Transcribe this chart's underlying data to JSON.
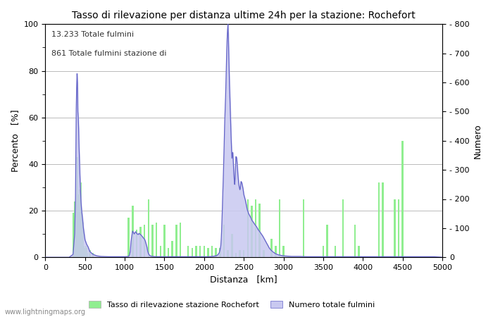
{
  "title": "Tasso di rilevazione per distanza ultime 24h per la stazione: Rochefort",
  "xlabel": "Distanza   [km]",
  "ylabel_left": "Percento   [%]",
  "ylabel_right": "Numero",
  "annotation_line1": "13.233 Totale fulmini",
  "annotation_line2": "861 Totale fulmini stazione di",
  "xlim": [
    0,
    5000
  ],
  "ylim_left": [
    0,
    100
  ],
  "ylim_right": [
    0,
    800
  ],
  "xticks": [
    0,
    500,
    1000,
    1500,
    2000,
    2500,
    3000,
    3500,
    4000,
    4500,
    5000
  ],
  "yticks_left": [
    0,
    20,
    40,
    60,
    80,
    100
  ],
  "yticks_right": [
    0,
    100,
    200,
    300,
    400,
    500,
    600,
    700,
    800
  ],
  "legend_label_green": "Tasso di rilevazione stazione Rochefort",
  "legend_label_blue": "Numero totale fulmini",
  "watermark": "www.lightningmaps.org",
  "bar_color": "#90ee90",
  "fill_color": "#c8c8f0",
  "line_color": "#6464c8",
  "bg_color": "#ffffff",
  "grid_color": "#bbbbbb",
  "figsize": [
    7.0,
    4.5
  ],
  "dpi": 100,
  "bar_data": [
    [
      50,
      0
    ],
    [
      300,
      0
    ],
    [
      350,
      19
    ],
    [
      370,
      24
    ],
    [
      390,
      18
    ],
    [
      400,
      43
    ],
    [
      410,
      15
    ],
    [
      420,
      27
    ],
    [
      430,
      29
    ],
    [
      440,
      28
    ],
    [
      450,
      32
    ],
    [
      460,
      18
    ],
    [
      470,
      15
    ],
    [
      480,
      5
    ],
    [
      490,
      4
    ],
    [
      500,
      3
    ],
    [
      510,
      5
    ],
    [
      520,
      4
    ],
    [
      530,
      2
    ],
    [
      560,
      3
    ],
    [
      600,
      2
    ],
    [
      700,
      0
    ],
    [
      800,
      0
    ],
    [
      850,
      0
    ],
    [
      900,
      0
    ],
    [
      950,
      0
    ],
    [
      1050,
      17
    ],
    [
      1100,
      22
    ],
    [
      1150,
      12
    ],
    [
      1200,
      13
    ],
    [
      1250,
      14
    ],
    [
      1300,
      25
    ],
    [
      1350,
      14
    ],
    [
      1400,
      15
    ],
    [
      1450,
      5
    ],
    [
      1500,
      14
    ],
    [
      1550,
      4
    ],
    [
      1600,
      7
    ],
    [
      1650,
      14
    ],
    [
      1700,
      15
    ],
    [
      1750,
      0
    ],
    [
      1800,
      5
    ],
    [
      1850,
      4
    ],
    [
      1900,
      5
    ],
    [
      1950,
      5
    ],
    [
      2000,
      5
    ],
    [
      2050,
      4
    ],
    [
      2100,
      5
    ],
    [
      2150,
      4
    ],
    [
      2200,
      4
    ],
    [
      2250,
      14
    ],
    [
      2300,
      3
    ],
    [
      2350,
      10
    ],
    [
      2400,
      2
    ],
    [
      2450,
      3
    ],
    [
      2500,
      3
    ],
    [
      2550,
      25
    ],
    [
      2600,
      22
    ],
    [
      2650,
      25
    ],
    [
      2700,
      23
    ],
    [
      2750,
      3
    ],
    [
      2800,
      0
    ],
    [
      2850,
      8
    ],
    [
      2900,
      5
    ],
    [
      2950,
      25
    ],
    [
      3000,
      5
    ],
    [
      3050,
      0
    ],
    [
      3100,
      0
    ],
    [
      3150,
      0
    ],
    [
      3200,
      0
    ],
    [
      3250,
      25
    ],
    [
      3300,
      0
    ],
    [
      3350,
      0
    ],
    [
      3400,
      0
    ],
    [
      3450,
      0
    ],
    [
      3500,
      5
    ],
    [
      3550,
      14
    ],
    [
      3600,
      0
    ],
    [
      3650,
      5
    ],
    [
      3700,
      0
    ],
    [
      3750,
      25
    ],
    [
      3800,
      0
    ],
    [
      3850,
      0
    ],
    [
      3900,
      14
    ],
    [
      3950,
      5
    ],
    [
      4000,
      0
    ],
    [
      4050,
      0
    ],
    [
      4100,
      0
    ],
    [
      4150,
      0
    ],
    [
      4200,
      32
    ],
    [
      4250,
      32
    ],
    [
      4300,
      0
    ],
    [
      4350,
      0
    ],
    [
      4400,
      25
    ],
    [
      4450,
      25
    ],
    [
      4500,
      50
    ],
    [
      4550,
      0
    ],
    [
      4600,
      0
    ],
    [
      4650,
      0
    ],
    [
      4700,
      0
    ],
    [
      4750,
      0
    ],
    [
      4800,
      0
    ],
    [
      4850,
      0
    ],
    [
      4900,
      0
    ],
    [
      4950,
      0
    ]
  ],
  "line_data": [
    [
      0,
      0
    ],
    [
      100,
      0
    ],
    [
      200,
      0
    ],
    [
      300,
      0
    ],
    [
      350,
      10
    ],
    [
      370,
      80
    ],
    [
      380,
      200
    ],
    [
      390,
      510
    ],
    [
      395,
      580
    ],
    [
      400,
      630
    ],
    [
      405,
      600
    ],
    [
      410,
      500
    ],
    [
      415,
      480
    ],
    [
      420,
      440
    ],
    [
      425,
      380
    ],
    [
      430,
      340
    ],
    [
      435,
      290
    ],
    [
      440,
      250
    ],
    [
      445,
      220
    ],
    [
      450,
      190
    ],
    [
      455,
      170
    ],
    [
      460,
      155
    ],
    [
      470,
      130
    ],
    [
      480,
      100
    ],
    [
      490,
      80
    ],
    [
      500,
      60
    ],
    [
      520,
      45
    ],
    [
      540,
      35
    ],
    [
      560,
      20
    ],
    [
      580,
      15
    ],
    [
      600,
      10
    ],
    [
      620,
      8
    ],
    [
      650,
      5
    ],
    [
      700,
      3
    ],
    [
      800,
      2
    ],
    [
      900,
      2
    ],
    [
      1000,
      2
    ],
    [
      1050,
      3
    ],
    [
      1060,
      8
    ],
    [
      1070,
      20
    ],
    [
      1080,
      55
    ],
    [
      1090,
      75
    ],
    [
      1100,
      90
    ],
    [
      1110,
      85
    ],
    [
      1120,
      80
    ],
    [
      1130,
      85
    ],
    [
      1140,
      88
    ],
    [
      1150,
      82
    ],
    [
      1160,
      80
    ],
    [
      1170,
      78
    ],
    [
      1180,
      82
    ],
    [
      1190,
      80
    ],
    [
      1200,
      78
    ],
    [
      1210,
      75
    ],
    [
      1220,
      72
    ],
    [
      1230,
      68
    ],
    [
      1240,
      65
    ],
    [
      1250,
      62
    ],
    [
      1260,
      55
    ],
    [
      1270,
      45
    ],
    [
      1280,
      35
    ],
    [
      1290,
      20
    ],
    [
      1300,
      12
    ],
    [
      1310,
      8
    ],
    [
      1320,
      5
    ],
    [
      1350,
      3
    ],
    [
      1400,
      2
    ],
    [
      1450,
      2
    ],
    [
      1500,
      2
    ],
    [
      1550,
      2
    ],
    [
      1600,
      2
    ],
    [
      1650,
      2
    ],
    [
      1700,
      2
    ],
    [
      1750,
      2
    ],
    [
      1800,
      2
    ],
    [
      1850,
      2
    ],
    [
      1900,
      2
    ],
    [
      1950,
      2
    ],
    [
      2000,
      2
    ],
    [
      2050,
      2
    ],
    [
      2100,
      3
    ],
    [
      2150,
      5
    ],
    [
      2170,
      8
    ],
    [
      2190,
      15
    ],
    [
      2200,
      25
    ],
    [
      2210,
      40
    ],
    [
      2215,
      60
    ],
    [
      2220,
      90
    ],
    [
      2225,
      130
    ],
    [
      2230,
      170
    ],
    [
      2235,
      220
    ],
    [
      2240,
      260
    ],
    [
      2245,
      310
    ],
    [
      2250,
      360
    ],
    [
      2255,
      420
    ],
    [
      2260,
      470
    ],
    [
      2265,
      510
    ],
    [
      2270,
      550
    ],
    [
      2275,
      600
    ],
    [
      2280,
      660
    ],
    [
      2285,
      710
    ],
    [
      2290,
      750
    ],
    [
      2295,
      780
    ],
    [
      2300,
      800
    ],
    [
      2305,
      760
    ],
    [
      2310,
      700
    ],
    [
      2315,
      640
    ],
    [
      2320,
      590
    ],
    [
      2325,
      545
    ],
    [
      2330,
      500
    ],
    [
      2335,
      455
    ],
    [
      2340,
      410
    ],
    [
      2345,
      375
    ],
    [
      2350,
      340
    ],
    [
      2355,
      350
    ],
    [
      2360,
      360
    ],
    [
      2365,
      340
    ],
    [
      2370,
      310
    ],
    [
      2375,
      285
    ],
    [
      2380,
      265
    ],
    [
      2385,
      250
    ],
    [
      2390,
      270
    ],
    [
      2395,
      310
    ],
    [
      2400,
      345
    ],
    [
      2405,
      345
    ],
    [
      2410,
      340
    ],
    [
      2415,
      325
    ],
    [
      2420,
      305
    ],
    [
      2425,
      285
    ],
    [
      2430,
      270
    ],
    [
      2435,
      255
    ],
    [
      2440,
      245
    ],
    [
      2445,
      238
    ],
    [
      2450,
      232
    ],
    [
      2455,
      235
    ],
    [
      2460,
      250
    ],
    [
      2465,
      260
    ],
    [
      2470,
      258
    ],
    [
      2475,
      255
    ],
    [
      2480,
      248
    ],
    [
      2485,
      242
    ],
    [
      2490,
      235
    ],
    [
      2495,
      225
    ],
    [
      2500,
      215
    ],
    [
      2505,
      210
    ],
    [
      2510,
      205
    ],
    [
      2515,
      200
    ],
    [
      2520,
      195
    ],
    [
      2525,
      188
    ],
    [
      2530,
      182
    ],
    [
      2535,
      175
    ],
    [
      2540,
      168
    ],
    [
      2545,
      162
    ],
    [
      2550,
      158
    ],
    [
      2555,
      155
    ],
    [
      2560,
      150
    ],
    [
      2570,
      145
    ],
    [
      2580,
      140
    ],
    [
      2590,
      135
    ],
    [
      2600,
      128
    ],
    [
      2620,
      120
    ],
    [
      2640,
      112
    ],
    [
      2660,
      105
    ],
    [
      2680,
      95
    ],
    [
      2700,
      88
    ],
    [
      2720,
      80
    ],
    [
      2740,
      72
    ],
    [
      2760,
      62
    ],
    [
      2780,
      52
    ],
    [
      2800,
      42
    ],
    [
      2820,
      32
    ],
    [
      2840,
      25
    ],
    [
      2860,
      20
    ],
    [
      2880,
      16
    ],
    [
      2900,
      12
    ],
    [
      2920,
      10
    ],
    [
      2940,
      8
    ],
    [
      2960,
      7
    ],
    [
      2980,
      6
    ],
    [
      3000,
      5
    ],
    [
      3050,
      4
    ],
    [
      3100,
      3
    ],
    [
      3200,
      3
    ],
    [
      3300,
      2
    ],
    [
      3400,
      2
    ],
    [
      3500,
      2
    ],
    [
      3600,
      2
    ],
    [
      3700,
      2
    ],
    [
      3800,
      2
    ],
    [
      3900,
      2
    ],
    [
      4000,
      2
    ],
    [
      4100,
      2
    ],
    [
      4200,
      2
    ],
    [
      4300,
      2
    ],
    [
      4400,
      2
    ],
    [
      4500,
      2
    ],
    [
      4600,
      2
    ],
    [
      4700,
      2
    ],
    [
      4800,
      2
    ],
    [
      4900,
      2
    ],
    [
      5000,
      0
    ]
  ]
}
